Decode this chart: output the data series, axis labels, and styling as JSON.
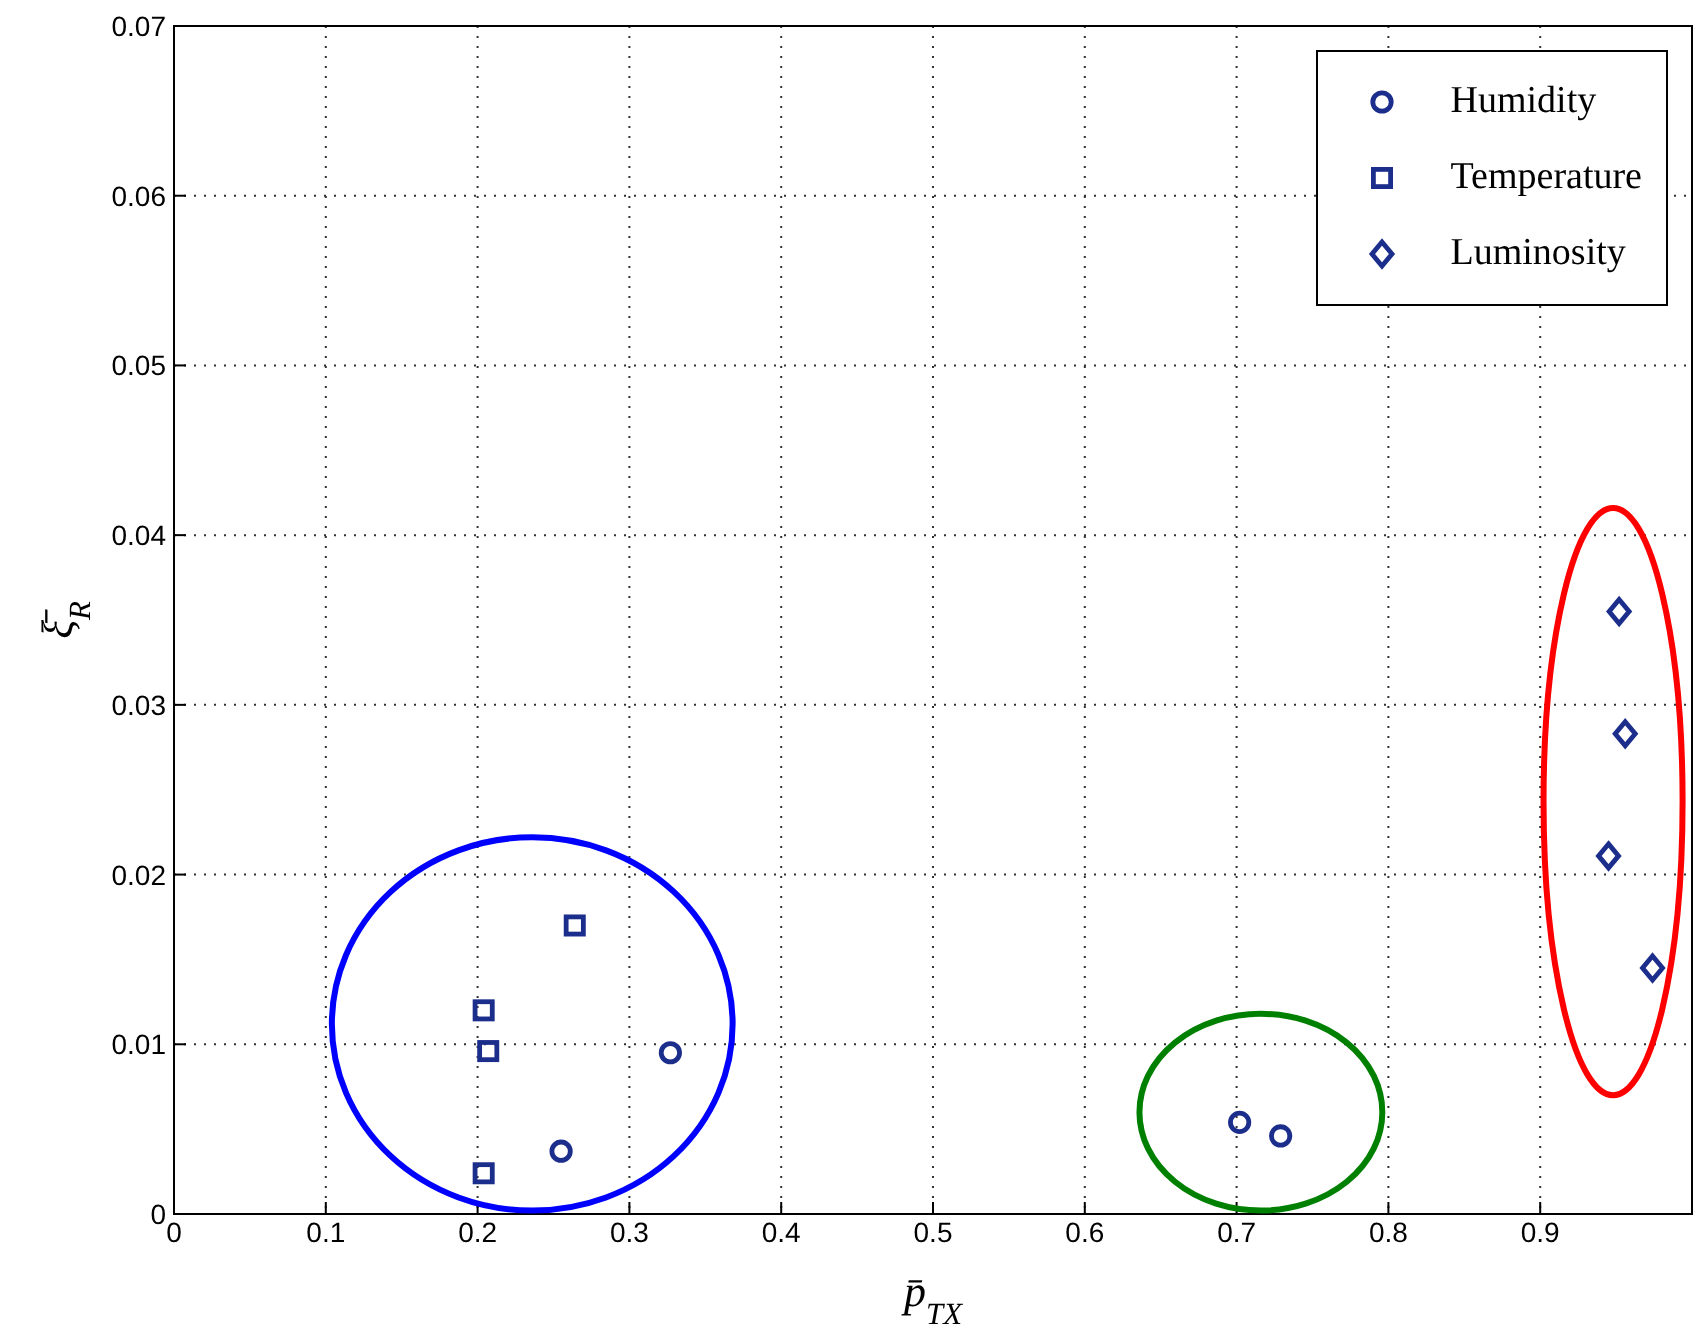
{
  "chart_data": {
    "type": "scatter",
    "xlabel": "p̄$_{TX}$",
    "ylabel": "ξ̄$_{R}$",
    "xlim": [
      0,
      1
    ],
    "xticks": [
      0,
      0.1,
      0.2,
      0.3,
      0.4,
      0.5,
      0.6,
      0.7,
      0.8,
      0.9
    ],
    "ylim": [
      0,
      0.07
    ],
    "yticks": [
      0,
      0.01,
      0.02,
      0.03,
      0.04,
      0.05,
      0.06,
      0.07
    ],
    "grid": true,
    "legend": "top right",
    "series": [
      {
        "name": "Humidity",
        "color": "#1c2e8c",
        "marker": "circle",
        "x": [
          0.255,
          0.327,
          0.702,
          0.729
        ],
        "values": [
          0.0037,
          0.0095,
          0.0054,
          0.0046
        ]
      },
      {
        "name": "Temperature",
        "color": "#1c2e8c",
        "marker": "square",
        "x": [
          0.264,
          0.204,
          0.207,
          0.204
        ],
        "values": [
          0.017,
          0.012,
          0.0096,
          0.0024
        ]
      },
      {
        "name": "Luminosity",
        "color": "#1c2e8c",
        "marker": "diamond",
        "x": [
          0.952,
          0.956,
          0.945,
          0.974
        ],
        "values": [
          0.0355,
          0.0283,
          0.0211,
          0.0145
        ]
      }
    ]
  }
}
